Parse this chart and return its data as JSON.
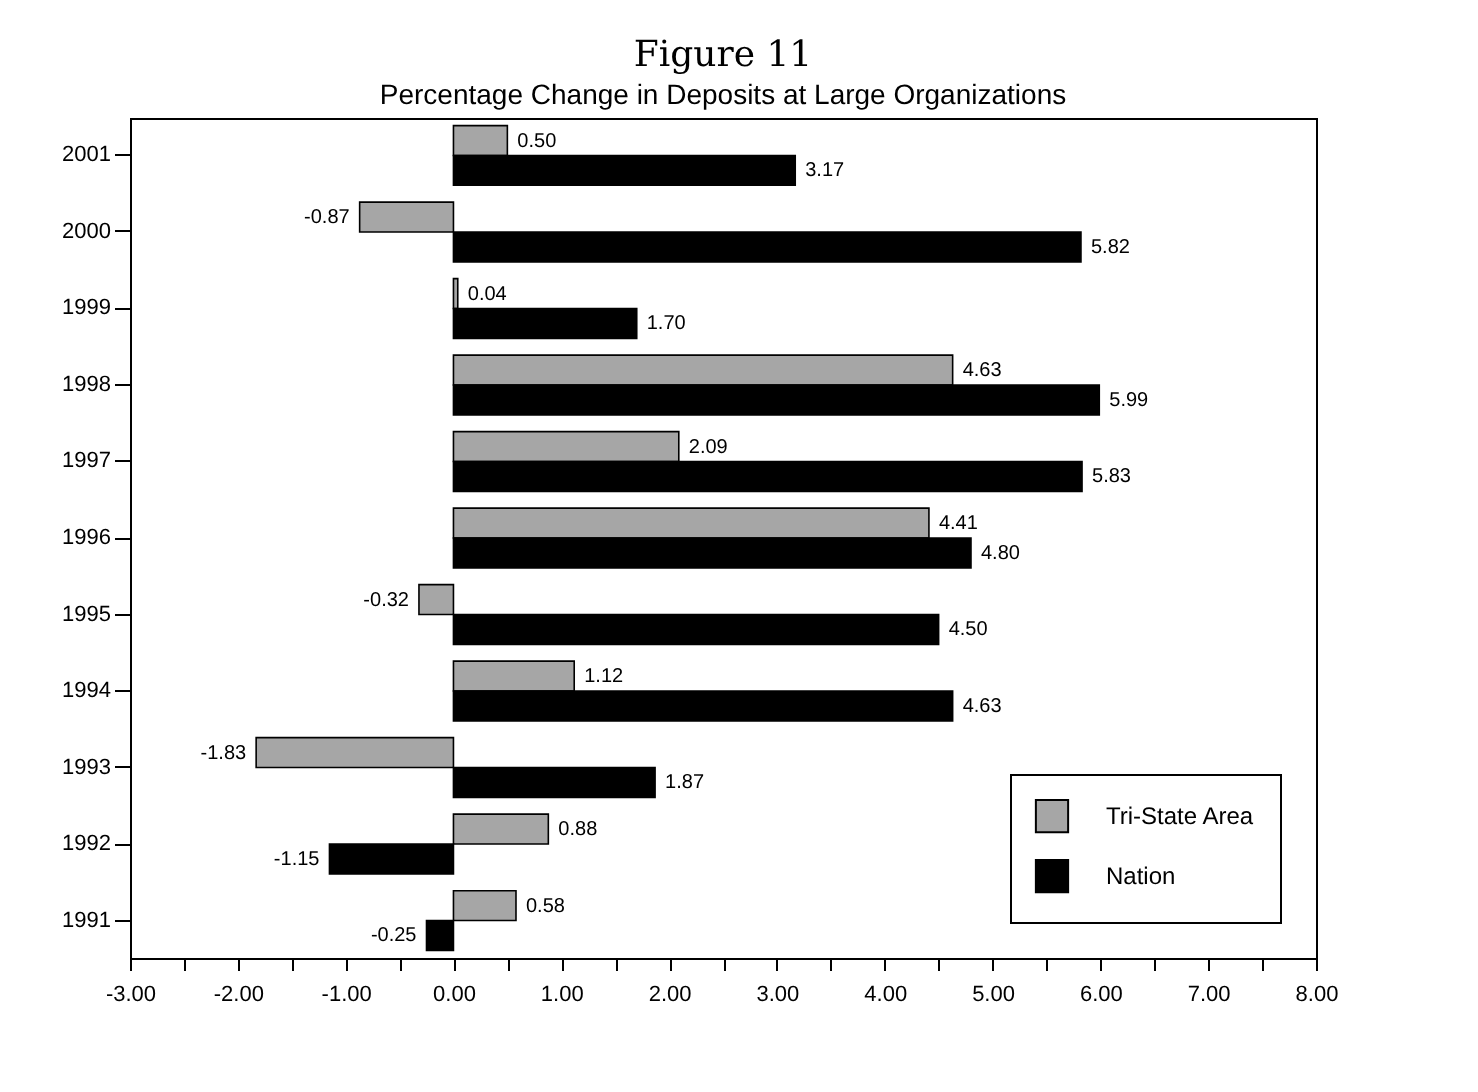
{
  "chart_data": {
    "type": "bar",
    "orientation": "horizontal",
    "title": "Figure 11",
    "subtitle": "Percentage Change in Deposits at Large Organizations",
    "categories": [
      "2001",
      "2000",
      "1999",
      "1998",
      "1997",
      "1996",
      "1995",
      "1994",
      "1993",
      "1992",
      "1991"
    ],
    "series": [
      {
        "name": "Tri-State Area",
        "color": "#a6a6a6",
        "values": [
          0.5,
          -0.87,
          0.04,
          4.63,
          2.09,
          4.41,
          -0.32,
          1.12,
          -1.83,
          0.88,
          0.58
        ],
        "value_labels": [
          "0.50",
          "-0.87",
          "0.04",
          "4.63",
          "2.09",
          "4.41",
          "-0.32",
          "1.12",
          "-1.83",
          "0.88",
          "0.58"
        ]
      },
      {
        "name": "Nation",
        "color": "#000000",
        "values": [
          3.17,
          5.82,
          1.7,
          5.99,
          5.83,
          4.8,
          4.5,
          4.63,
          1.87,
          -1.15,
          -0.25
        ],
        "value_labels": [
          "3.17",
          "5.82",
          "1.70",
          "5.99",
          "5.83",
          "4.80",
          "4.50",
          "4.63",
          "1.87",
          "-1.15",
          "-0.25"
        ]
      }
    ],
    "xlim": [
      -3,
      8
    ],
    "xticks": [
      {
        "value": -3,
        "label": "-3.00"
      },
      {
        "value": -2.5,
        "label": null
      },
      {
        "value": -2,
        "label": "-2.00"
      },
      {
        "value": -1.5,
        "label": null
      },
      {
        "value": -1,
        "label": "-1.00"
      },
      {
        "value": -0.5,
        "label": null
      },
      {
        "value": 0,
        "label": "0.00"
      },
      {
        "value": 0.5,
        "label": null
      },
      {
        "value": 1,
        "label": "1.00"
      },
      {
        "value": 1.5,
        "label": null
      },
      {
        "value": 2,
        "label": "2.00"
      },
      {
        "value": 2.5,
        "label": null
      },
      {
        "value": 3,
        "label": "3.00"
      },
      {
        "value": 3.5,
        "label": null
      },
      {
        "value": 4,
        "label": "4.00"
      },
      {
        "value": 4.5,
        "label": null
      },
      {
        "value": 5,
        "label": "5.00"
      },
      {
        "value": 5.5,
        "label": null
      },
      {
        "value": 6,
        "label": "6.00"
      },
      {
        "value": 6.5,
        "label": null
      },
      {
        "value": 7,
        "label": "7.00"
      },
      {
        "value": 7.5,
        "label": null
      },
      {
        "value": 8,
        "label": "8.00"
      }
    ],
    "grid": false,
    "legend": "bottom right"
  }
}
